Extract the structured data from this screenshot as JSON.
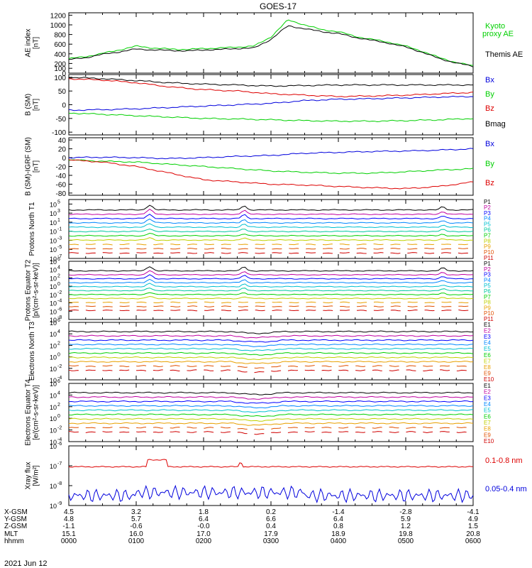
{
  "title": "GOES-17",
  "date_label": "2021 Jun 12",
  "colors": {
    "green": "#00d000",
    "black": "#000000",
    "red": "#dd0000",
    "blue": "#0000dd"
  },
  "orbit_table": {
    "row_labels": [
      "X-GSM",
      "Y-GSM",
      "Z-GSM",
      "MLT",
      "hhmm"
    ],
    "columns": [
      [
        "4.5",
        "4.8",
        "-1.1",
        "15.1",
        "0000"
      ],
      [
        "3.2",
        "5.7",
        "-0.6",
        "16.0",
        "0100"
      ],
      [
        "1.8",
        "6.4",
        "-0.0",
        "17.0",
        "0200"
      ],
      [
        "0.2",
        "6.6",
        "0.4",
        "17.9",
        "0300"
      ],
      [
        "-1.4",
        "6.4",
        "0.8",
        "18.9",
        "0400"
      ],
      [
        "-2.8",
        "5.9",
        "1.2",
        "19.8",
        "0500"
      ],
      [
        "-4.1",
        "4.9",
        "1.5",
        "20.8",
        "0600"
      ]
    ]
  },
  "chart_data": [
    {
      "type": "line",
      "ylabel": "AE index [nT]",
      "ylim": [
        0,
        1250
      ],
      "yticks": [
        0,
        100,
        200,
        400,
        600,
        800,
        1000,
        1200
      ],
      "x": [
        0,
        0.25,
        0.5,
        0.75,
        1,
        1.25,
        1.5,
        1.75,
        2,
        2.25,
        2.5,
        2.75,
        3,
        3.25,
        3.5,
        3.75,
        4,
        4.25,
        4.5,
        4.75,
        5,
        5.25,
        5.5,
        5.75,
        6
      ],
      "series": [
        {
          "name": "Kyoto proxy AE",
          "color": "green",
          "values": [
            300,
            340,
            410,
            480,
            560,
            520,
            500,
            490,
            510,
            520,
            540,
            560,
            750,
            1100,
            1000,
            900,
            860,
            760,
            700,
            640,
            560,
            450,
            320,
            220,
            150
          ]
        },
        {
          "name": "Themis AE",
          "color": "black",
          "values": [
            280,
            320,
            390,
            440,
            500,
            480,
            470,
            460,
            480,
            490,
            510,
            520,
            700,
            980,
            920,
            860,
            820,
            740,
            680,
            620,
            540,
            430,
            300,
            210,
            140
          ]
        }
      ]
    },
    {
      "type": "line",
      "ylabel": "B (SM) [nT]",
      "ylim": [
        -110,
        110
      ],
      "yticks": [
        -100,
        -50,
        0,
        50,
        100
      ],
      "x": [
        0,
        0.5,
        1,
        1.5,
        2,
        2.5,
        3,
        3.5,
        4,
        4.5,
        5,
        5.5,
        6
      ],
      "series": [
        {
          "name": "Bx",
          "color": "blue",
          "values": [
            -20,
            -18,
            -15,
            -10,
            -5,
            0,
            5,
            15,
            20,
            22,
            25,
            28,
            30
          ]
        },
        {
          "name": "By",
          "color": "green",
          "values": [
            -30,
            -35,
            -40,
            -45,
            -50,
            -52,
            -55,
            -58,
            -60,
            -60,
            -58,
            -55,
            -50
          ]
        },
        {
          "name": "Bz",
          "color": "red",
          "values": [
            95,
            90,
            80,
            65,
            55,
            50,
            40,
            35,
            30,
            32,
            35,
            40,
            45
          ]
        },
        {
          "name": "Bmag",
          "color": "black",
          "values": [
            100,
            95,
            88,
            80,
            75,
            72,
            68,
            70,
            72,
            72,
            72,
            72,
            72
          ]
        }
      ]
    },
    {
      "type": "line",
      "ylabel": "B (SM)-IGRF (SM) [nT]",
      "ylim": [
        -85,
        45
      ],
      "yticks": [
        -80,
        -60,
        -40,
        -20,
        0,
        20,
        40
      ],
      "x": [
        0,
        0.5,
        1,
        1.5,
        2,
        2.5,
        3,
        3.5,
        4,
        4.5,
        5,
        5.5,
        6
      ],
      "series": [
        {
          "name": "Bx",
          "color": "blue",
          "values": [
            0,
            1,
            0,
            -2,
            0,
            3,
            5,
            10,
            12,
            14,
            15,
            17,
            20
          ]
        },
        {
          "name": "By",
          "color": "green",
          "values": [
            -5,
            -8,
            -10,
            -15,
            -20,
            -25,
            -30,
            -33,
            -35,
            -35,
            -32,
            -28,
            -25
          ]
        },
        {
          "name": "Bz",
          "color": "red",
          "values": [
            -5,
            -10,
            -20,
            -35,
            -50,
            -55,
            -60,
            -62,
            -65,
            -68,
            -70,
            -65,
            -55
          ]
        }
      ]
    },
    {
      "type": "line",
      "ylabel": "Protons North T1",
      "yscale": "log",
      "ylim_exp": [
        -7,
        6
      ],
      "channel_labels": [
        "P1",
        "P2",
        "P3",
        "P4",
        "P5",
        "P6",
        "P7",
        "P8",
        "P9",
        "P10",
        "P11"
      ]
    },
    {
      "type": "line",
      "ylabel": "Protons Equator T2 [p/(cm²-s-sr-keV)]",
      "yscale": "log",
      "ylim_exp": [
        -8,
        6
      ],
      "channel_labels": [
        "P1",
        "P2",
        "P3",
        "P4",
        "P5",
        "P6",
        "P7",
        "P8",
        "P9",
        "P10",
        "P11"
      ]
    },
    {
      "type": "line",
      "ylabel": "Electrons North T3",
      "yscale": "log",
      "ylim_exp": [
        -4,
        6
      ],
      "channel_labels": [
        "E1",
        "E2",
        "E3",
        "E4",
        "E5",
        "E6",
        "E7",
        "E8",
        "E9",
        "E10"
      ]
    },
    {
      "type": "line",
      "ylabel": "Electrons Equator T4 [e/(cm²-s-sr-keV)]",
      "yscale": "log",
      "ylim_exp": [
        -4,
        6
      ],
      "channel_labels": [
        "E1",
        "E2",
        "E3",
        "E4",
        "E5",
        "E6",
        "E7",
        "E8",
        "E9",
        "E10"
      ]
    },
    {
      "type": "line",
      "ylabel": "Xray flux [W/m²]",
      "yscale": "log",
      "ylim_exp": [
        -9,
        -6
      ],
      "series": [
        {
          "name": "0.1-0.8 nm",
          "color": "red",
          "level": -7.05
        },
        {
          "name": "0.05-0.4 nm",
          "color": "blue",
          "level": -8.5
        }
      ]
    }
  ]
}
